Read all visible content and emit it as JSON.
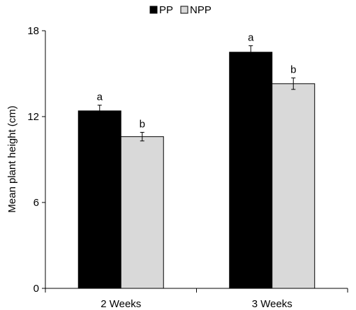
{
  "chart_data": {
    "type": "bar",
    "title": "",
    "xlabel": "",
    "ylabel": "Mean plant height (cm)",
    "ylim": [
      0,
      18
    ],
    "yticks": [
      "0",
      "6",
      "12",
      "18"
    ],
    "categories": [
      "2 Weeks",
      "3 Weeks"
    ],
    "series": [
      {
        "name": "PP",
        "color": "#000000",
        "values": [
          12.4,
          16.5
        ],
        "errors": [
          0.4,
          0.45
        ],
        "labels": [
          "a",
          "a"
        ]
      },
      {
        "name": "NPP",
        "color": "#d9d9d9",
        "values": [
          10.6,
          14.3
        ],
        "errors": [
          0.3,
          0.4
        ],
        "labels": [
          "b",
          "b"
        ]
      }
    ],
    "legend_position": "top-center",
    "grid": false
  }
}
